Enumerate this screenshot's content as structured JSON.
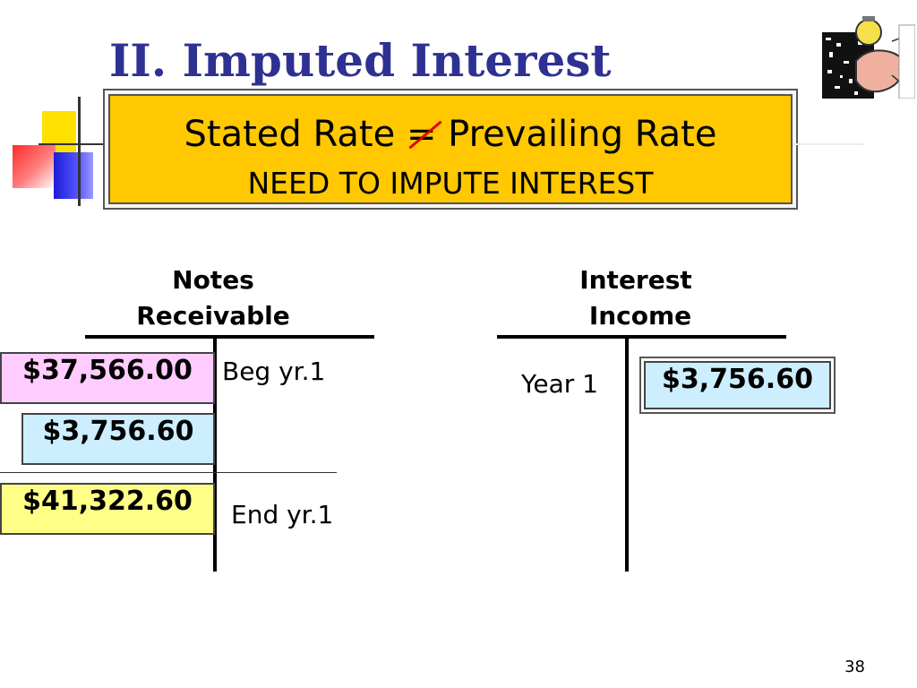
{
  "title": "II.  Imputed Interest",
  "callout": {
    "left_text": "Stated Rate ",
    "operator": "=",
    "right_text": " Prevailing Rate",
    "subtitle": "NEED TO IMPUTE INTEREST"
  },
  "accounts": {
    "notes_receivable": {
      "title_line1": "Notes",
      "title_line2": "Receivable",
      "beg_label": "Beg yr.1",
      "end_label": "End yr.1",
      "beg_amount": "$37,566.00",
      "interest_amount": "$3,756.60",
      "end_amount": "$41,322.60"
    },
    "interest_income": {
      "title_line1": "Interest",
      "title_line2": "Income",
      "year_label": "Year 1",
      "amount": "$3,756.60"
    }
  },
  "page_number": "38",
  "colors": {
    "title": "#2e3192",
    "callout_bg": "#ffc800",
    "strike": "#e00000",
    "pink_box": "#ffccff",
    "blue_box": "#cceeff",
    "yellow_box": "#ffff88"
  }
}
